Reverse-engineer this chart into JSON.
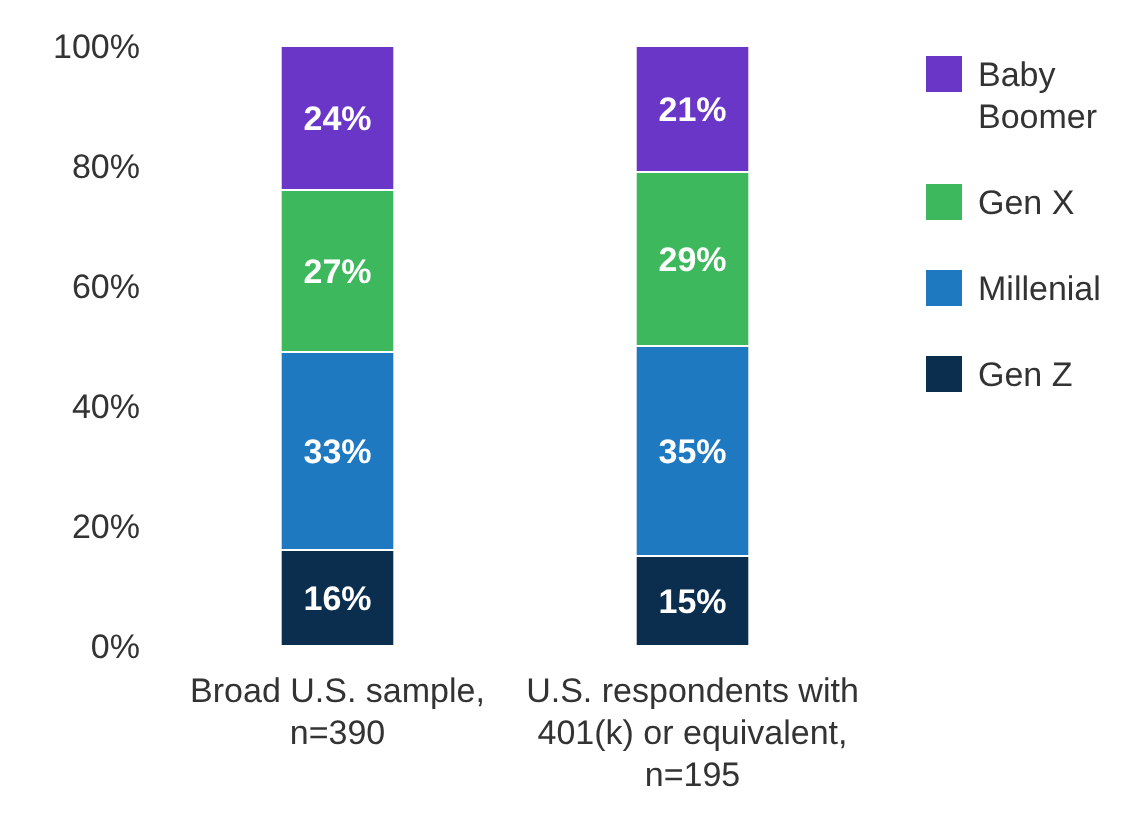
{
  "chart_data": {
    "type": "bar",
    "stacked": true,
    "categories": [
      "Broad U.S. sample, n=390",
      "U.S. respondents with 401(k) or equivalent, n=195"
    ],
    "series": [
      {
        "name": "Gen Z",
        "color": "#0b2d4e",
        "values": [
          16,
          15
        ],
        "value_labels": [
          "16%",
          "15%"
        ]
      },
      {
        "name": "Millenial",
        "color": "#1f79c1",
        "values": [
          33,
          35
        ],
        "value_labels": [
          "33%",
          "35%"
        ]
      },
      {
        "name": "Gen X",
        "color": "#3db85c",
        "values": [
          27,
          29
        ],
        "value_labels": [
          "27%",
          "29%"
        ]
      },
      {
        "name": "Baby Boomer",
        "color": "#6a36c8",
        "values": [
          24,
          21
        ],
        "value_labels": [
          "24%",
          "21%"
        ]
      }
    ],
    "ylim": [
      0,
      100
    ],
    "yticks": [
      {
        "value": 0,
        "label": "0%"
      },
      {
        "value": 20,
        "label": "20%"
      },
      {
        "value": 40,
        "label": "40%"
      },
      {
        "value": 60,
        "label": "60%"
      },
      {
        "value": 80,
        "label": "80%"
      },
      {
        "value": 100,
        "label": "100%"
      }
    ],
    "grid": false,
    "legend": "right"
  }
}
